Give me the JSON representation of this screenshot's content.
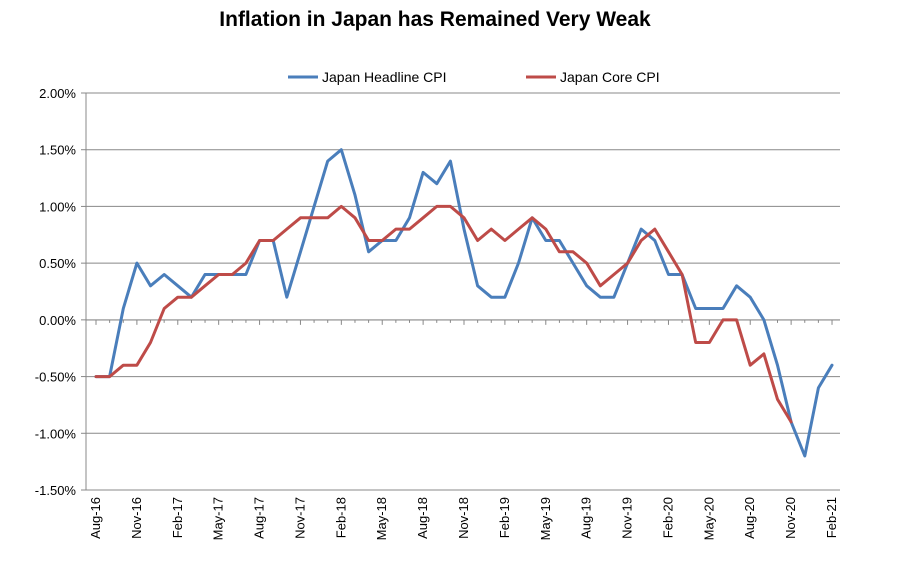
{
  "chart_data": {
    "type": "line",
    "title": "Inflation in Japan has Remained Very Weak",
    "xlabel": "",
    "ylabel": "",
    "ylim": [
      -1.5,
      2.0
    ],
    "yticks": [
      2.0,
      1.5,
      1.0,
      0.5,
      0.0,
      -0.5,
      -1.0,
      -1.5
    ],
    "ytick_labels": [
      "2.00%",
      "1.50%",
      "1.00%",
      "0.50%",
      "0.00%",
      "-0.50%",
      "-1.00%",
      "-1.50%"
    ],
    "x_tick_labels": [
      "Aug-16",
      "Nov-16",
      "Feb-17",
      "May-17",
      "Aug-17",
      "Nov-17",
      "Feb-18",
      "May-18",
      "Aug-18",
      "Nov-18",
      "Feb-19",
      "May-19",
      "Aug-19",
      "Nov-19",
      "Feb-20",
      "May-20",
      "Aug-20",
      "Nov-20",
      "Feb-21"
    ],
    "x_tick_every": 3,
    "num_points": 55,
    "grid": true,
    "legend_position": "top",
    "series": [
      {
        "name": "Japan Headline CPI",
        "color": "#4a7ebb",
        "values": [
          -0.5,
          -0.5,
          0.1,
          0.5,
          0.3,
          0.4,
          0.3,
          0.2,
          0.4,
          0.4,
          0.4,
          0.4,
          0.7,
          0.7,
          0.2,
          0.6,
          1.0,
          1.4,
          1.5,
          1.1,
          0.6,
          0.7,
          0.7,
          0.9,
          1.3,
          1.2,
          1.4,
          0.8,
          0.3,
          0.2,
          0.2,
          0.5,
          0.9,
          0.7,
          0.7,
          0.5,
          0.3,
          0.2,
          0.2,
          0.5,
          0.8,
          0.7,
          0.4,
          0.4,
          0.1,
          0.1,
          0.1,
          0.3,
          0.2,
          0.0,
          -0.4,
          -0.9,
          -1.2,
          -0.6,
          -0.4
        ]
      },
      {
        "name": "Japan Core CPI",
        "color": "#be4b48",
        "values": [
          -0.5,
          -0.5,
          -0.4,
          -0.4,
          -0.2,
          0.1,
          0.2,
          0.2,
          0.3,
          0.4,
          0.4,
          0.5,
          0.7,
          0.7,
          0.8,
          0.9,
          0.9,
          0.9,
          1.0,
          0.9,
          0.7,
          0.7,
          0.8,
          0.8,
          0.9,
          1.0,
          1.0,
          0.9,
          0.7,
          0.8,
          0.7,
          0.8,
          0.9,
          0.8,
          0.6,
          0.6,
          0.5,
          0.3,
          0.4,
          0.5,
          0.7,
          0.8,
          0.6,
          0.4,
          -0.2,
          -0.2,
          0.0,
          0.0,
          -0.4,
          -0.3,
          -0.7,
          -0.9
        ]
      }
    ]
  }
}
